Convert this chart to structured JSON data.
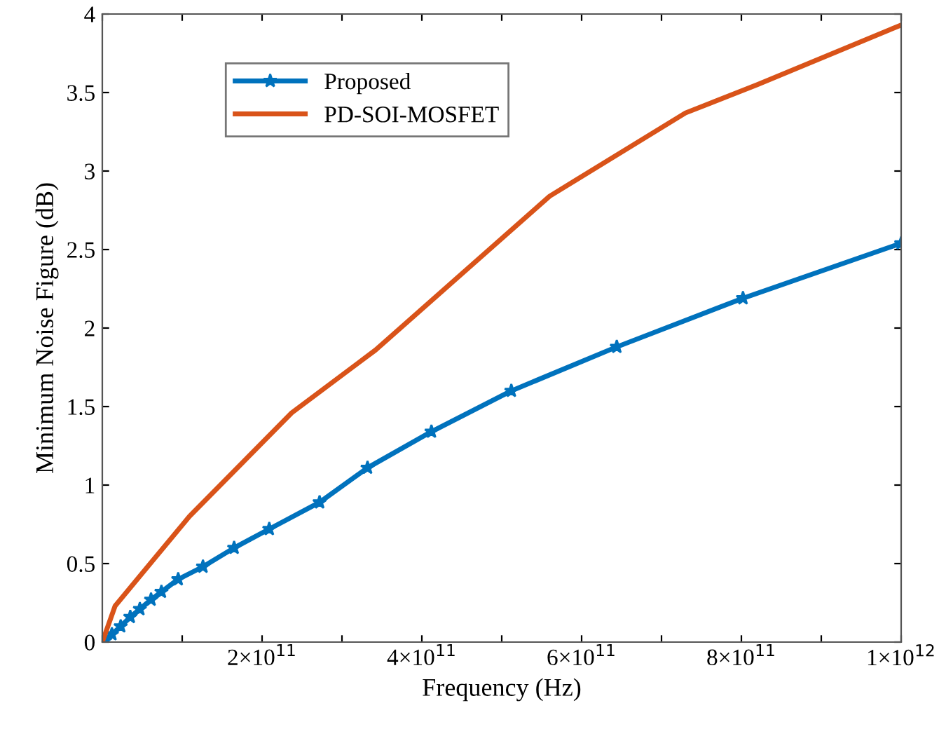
{
  "chart_data": {
    "type": "line",
    "xlabel": "Frequency (Hz)",
    "ylabel": "Minimum Noise Figure (dB)",
    "xlim": [
      0,
      1000000000000.0
    ],
    "ylim": [
      0,
      4
    ],
    "xticks": [
      {
        "value": 0,
        "label": null
      },
      {
        "value": 100000000000.0,
        "label": null
      },
      {
        "value": 200000000000.0,
        "label": "2×10$^{11}$"
      },
      {
        "value": 300000000000.0,
        "label": null
      },
      {
        "value": 400000000000.0,
        "label": "4×10$^{11}$"
      },
      {
        "value": 500000000000.0,
        "label": null
      },
      {
        "value": 600000000000.0,
        "label": "6×10$^{11}$"
      },
      {
        "value": 700000000000.0,
        "label": null
      },
      {
        "value": 800000000000.0,
        "label": "8×10$^{11}$"
      },
      {
        "value": 900000000000.0,
        "label": null
      },
      {
        "value": 1000000000000.0,
        "label": "1×10$^{12}$"
      }
    ],
    "yticks": [
      0,
      0.5,
      1,
      1.5,
      2,
      2.5,
      3,
      3.5,
      4
    ],
    "grid": false,
    "legend": "top left",
    "series": [
      {
        "name": "Proposed",
        "color": "#0072bd",
        "marker": "star",
        "x": [
          3500000000.0,
          12000000000.0,
          23000000000.0,
          35000000000.0,
          47000000000.0,
          61000000000.0,
          74000000000.0,
          95000000000.0,
          126000000000.0,
          165000000000.0,
          209000000000.0,
          272000000000.0,
          332000000000.0,
          412000000000.0,
          512000000000.0,
          644000000000.0,
          802000000000.0,
          1000000000000.0
        ],
        "values": [
          0.01,
          0.05,
          0.1,
          0.16,
          0.21,
          0.27,
          0.32,
          0.4,
          0.48,
          0.6,
          0.72,
          0.89,
          1.11,
          1.34,
          1.6,
          1.88,
          2.19,
          2.54
        ]
      },
      {
        "name": "PD-SOI-MOSFET",
        "color": "#d95319",
        "marker": "none",
        "x": [
          0,
          16000000000.0,
          60000000000.0,
          109000000000.0,
          237000000000.0,
          342000000000.0,
          560000000000.0,
          730000000000.0,
          820000000000.0,
          1000000000000.0
        ],
        "values": [
          0,
          0.23,
          0.5,
          0.8,
          1.46,
          1.86,
          2.84,
          3.37,
          3.55,
          3.93
        ]
      }
    ]
  }
}
